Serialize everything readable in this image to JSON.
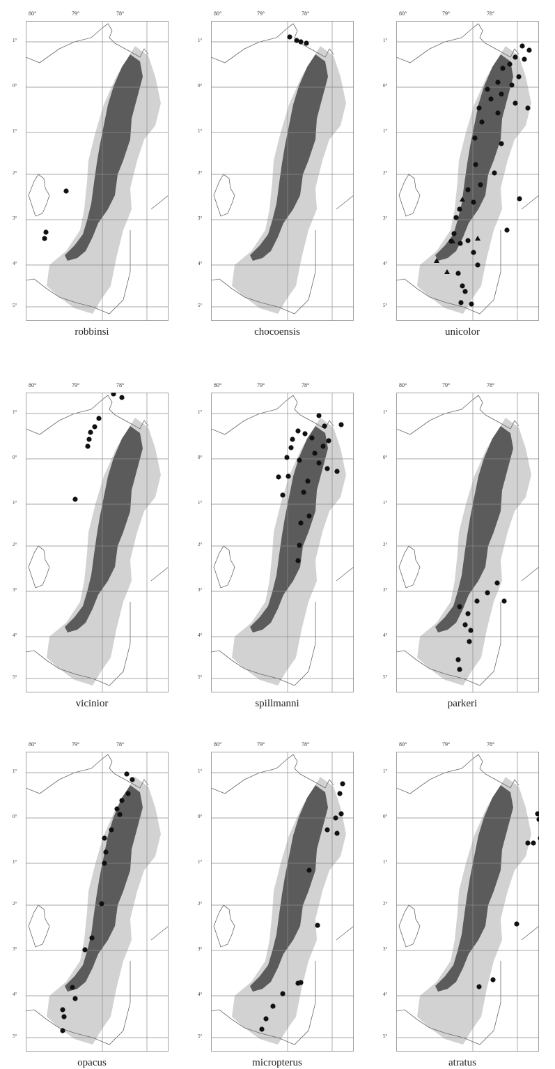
{
  "longitude_labels": [
    "80°",
    "79°",
    "78°"
  ],
  "latitude_labels": [
    "1°",
    "0°",
    "1°",
    "2°",
    "3°",
    "4°",
    "5°"
  ],
  "colors": {
    "andes_dark": "#5b5b5b",
    "lowland_light": "#d2d2d2",
    "grid": "#8a8a8a",
    "outline": "#666666",
    "point": "#111111"
  },
  "panels": [
    {
      "species": "robbinsi",
      "points": [
        [
          95,
          274,
          "c"
        ],
        [
          66,
          333,
          "c"
        ],
        [
          64,
          342,
          "c"
        ]
      ]
    },
    {
      "species": "chocoensis",
      "points": [
        [
          416,
          53,
          "c"
        ],
        [
          426,
          58,
          "c"
        ],
        [
          432,
          60,
          "c"
        ],
        [
          440,
          62,
          "c"
        ]
      ]
    },
    {
      "species": "unicolor",
      "points": [
        [
          750,
          66,
          "c"
        ],
        [
          760,
          72,
          "c"
        ],
        [
          778,
          72,
          "c"
        ],
        [
          740,
          82,
          "c"
        ],
        [
          753,
          85,
          "c"
        ],
        [
          732,
          92,
          "c"
        ],
        [
          722,
          98,
          "c"
        ],
        [
          745,
          110,
          "c"
        ],
        [
          715,
          118,
          "c"
        ],
        [
          735,
          122,
          "c"
        ],
        [
          700,
          128,
          "c"
        ],
        [
          720,
          135,
          "c"
        ],
        [
          705,
          142,
          "c"
        ],
        [
          740,
          148,
          "c"
        ],
        [
          688,
          155,
          "c"
        ],
        [
          758,
          155,
          "c"
        ],
        [
          715,
          162,
          "c"
        ],
        [
          692,
          175,
          "c"
        ],
        [
          682,
          198,
          "c"
        ],
        [
          720,
          206,
          "c"
        ],
        [
          683,
          236,
          "c"
        ],
        [
          710,
          248,
          "c"
        ],
        [
          690,
          265,
          "c"
        ],
        [
          672,
          272,
          "c"
        ],
        [
          746,
          285,
          "c"
        ],
        [
          680,
          290,
          "c"
        ],
        [
          660,
          300,
          "c"
        ],
        [
          655,
          312,
          "c"
        ],
        [
          652,
          335,
          "c"
        ],
        [
          728,
          330,
          "c"
        ],
        [
          648,
          346,
          "c"
        ],
        [
          661,
          349,
          "c"
        ],
        [
          672,
          345,
          "c"
        ],
        [
          680,
          362,
          "c"
        ],
        [
          686,
          380,
          "c"
        ],
        [
          627,
          374,
          "t"
        ],
        [
          642,
          390,
          "t"
        ],
        [
          658,
          392,
          "c"
        ],
        [
          664,
          410,
          "c"
        ],
        [
          668,
          418,
          "c"
        ],
        [
          662,
          434,
          "c"
        ],
        [
          677,
          436,
          "c"
        ],
        [
          686,
          342,
          "t"
        ],
        [
          664,
          286,
          "t"
        ],
        [
          650,
          346,
          "t"
        ]
      ]
    },
    {
      "species": "vicinior",
      "points": [
        [
          163,
          565,
          "c"
        ],
        [
          175,
          570,
          "c"
        ],
        [
          142,
          600,
          "c"
        ],
        [
          136,
          612,
          "c"
        ],
        [
          130,
          620,
          "c"
        ],
        [
          128,
          630,
          "c"
        ],
        [
          126,
          640,
          "c"
        ],
        [
          108,
          716,
          "c"
        ]
      ]
    },
    {
      "species": "spillmanni",
      "points": [
        [
          458,
          596,
          "c"
        ],
        [
          490,
          609,
          "c"
        ],
        [
          466,
          611,
          "c"
        ],
        [
          428,
          618,
          "c"
        ],
        [
          438,
          622,
          "c"
        ],
        [
          420,
          630,
          "c"
        ],
        [
          448,
          628,
          "c"
        ],
        [
          472,
          632,
          "c"
        ],
        [
          464,
          640,
          "c"
        ],
        [
          418,
          642,
          "c"
        ],
        [
          452,
          650,
          "c"
        ],
        [
          412,
          656,
          "c"
        ],
        [
          430,
          660,
          "c"
        ],
        [
          458,
          664,
          "c"
        ],
        [
          470,
          672,
          "c"
        ],
        [
          484,
          676,
          "c"
        ],
        [
          400,
          684,
          "c"
        ],
        [
          414,
          683,
          "c"
        ],
        [
          442,
          690,
          "c"
        ],
        [
          436,
          706,
          "c"
        ],
        [
          406,
          710,
          "c"
        ],
        [
          444,
          740,
          "c"
        ],
        [
          432,
          750,
          "c"
        ],
        [
          430,
          782,
          "c"
        ],
        [
          428,
          804,
          "c"
        ]
      ]
    },
    {
      "species": "parkeri",
      "points": [
        [
          714,
          836,
          "c"
        ],
        [
          700,
          850,
          "c"
        ],
        [
          685,
          862,
          "c"
        ],
        [
          724,
          862,
          "c"
        ],
        [
          660,
          870,
          "c"
        ],
        [
          672,
          880,
          "c"
        ],
        [
          668,
          896,
          "c"
        ],
        [
          676,
          904,
          "c"
        ],
        [
          674,
          920,
          "c"
        ],
        [
          658,
          946,
          "c"
        ],
        [
          660,
          960,
          "c"
        ]
      ]
    },
    {
      "species": "opacus",
      "points": [
        [
          182,
          1110,
          "c"
        ],
        [
          190,
          1118,
          "c"
        ],
        [
          184,
          1138,
          "c"
        ],
        [
          175,
          1148,
          "c"
        ],
        [
          168,
          1160,
          "c"
        ],
        [
          172,
          1168,
          "c"
        ],
        [
          160,
          1190,
          "c"
        ],
        [
          150,
          1202,
          "c"
        ],
        [
          152,
          1222,
          "c"
        ],
        [
          150,
          1238,
          "c"
        ],
        [
          146,
          1296,
          "c"
        ],
        [
          132,
          1345,
          "c"
        ],
        [
          122,
          1362,
          "c"
        ],
        [
          104,
          1416,
          "c"
        ],
        [
          108,
          1432,
          "c"
        ],
        [
          90,
          1448,
          "c"
        ],
        [
          92,
          1458,
          "c"
        ],
        [
          90,
          1478,
          "c"
        ]
      ]
    },
    {
      "species": "micropterus",
      "points": [
        [
          492,
          1124,
          "c"
        ],
        [
          488,
          1138,
          "c"
        ],
        [
          490,
          1167,
          "c"
        ],
        [
          482,
          1173,
          "c"
        ],
        [
          470,
          1190,
          "c"
        ],
        [
          484,
          1195,
          "c"
        ],
        [
          444,
          1248,
          "c"
        ],
        [
          456,
          1327,
          "c"
        ],
        [
          432,
          1409,
          "c"
        ],
        [
          428,
          1410,
          "c"
        ],
        [
          406,
          1425,
          "c"
        ],
        [
          392,
          1443,
          "c"
        ],
        [
          382,
          1461,
          "c"
        ],
        [
          376,
          1476,
          "c"
        ]
      ]
    },
    {
      "species": "atratus",
      "points": [
        [
          772,
          1167,
          "c"
        ],
        [
          774,
          1175,
          "c"
        ],
        [
          758,
          1209,
          "c"
        ],
        [
          766,
          1209,
          "c"
        ],
        [
          776,
          1202,
          "c"
        ],
        [
          742,
          1325,
          "c"
        ],
        [
          708,
          1405,
          "c"
        ],
        [
          688,
          1415,
          "c"
        ]
      ]
    }
  ]
}
